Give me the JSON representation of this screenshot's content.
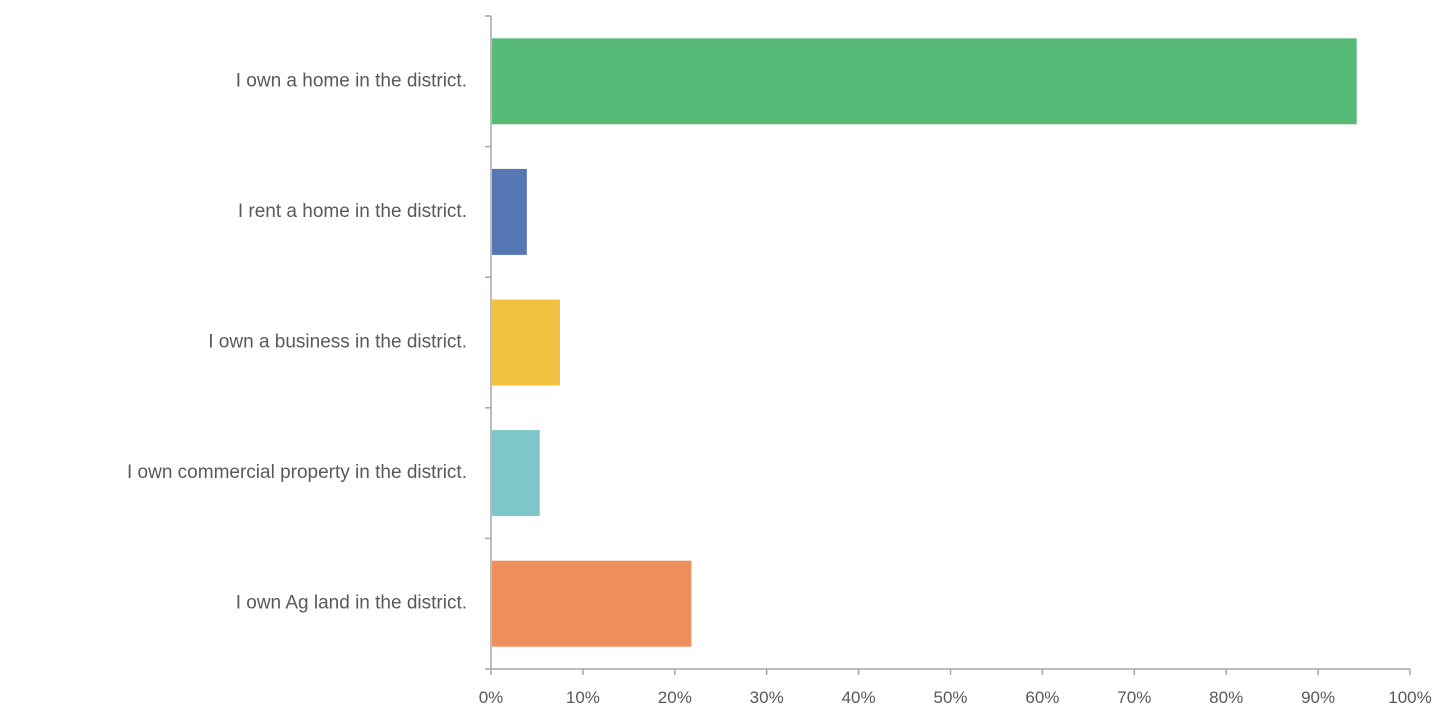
{
  "chart_data": {
    "type": "bar",
    "orientation": "horizontal",
    "categories": [
      "I own a home in the district.",
      "I rent a home in the district.",
      "I own a business in the district.",
      "I own commercial property in the district.",
      "I own Ag land in the district."
    ],
    "values": [
      94.2,
      3.9,
      7.5,
      5.3,
      21.8
    ],
    "value_unit": "%",
    "bar_colors": [
      "#57bb77",
      "#5677b3",
      "#f0c03e",
      "#7ec6c8",
      "#ef8f5a"
    ],
    "xlim": [
      0,
      100
    ],
    "xticks": [
      "0%",
      "10%",
      "20%",
      "30%",
      "40%",
      "50%",
      "60%",
      "70%",
      "80%",
      "90%",
      "100%"
    ],
    "title": "",
    "xlabel": "",
    "ylabel": "",
    "grid": false,
    "legend": "none"
  }
}
